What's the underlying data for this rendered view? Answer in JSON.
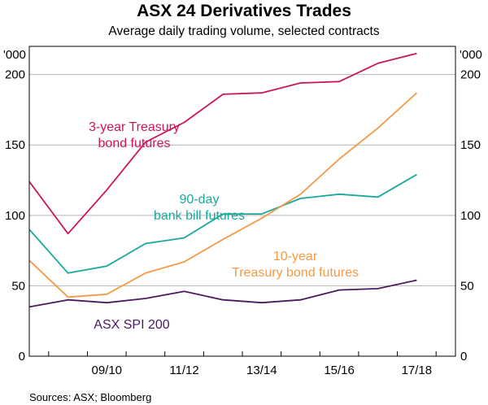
{
  "chart_data": {
    "type": "line",
    "title": "ASX 24 Derivatives Trades",
    "subtitle": "Average daily trading volume, selected contracts",
    "left_unit": "'000",
    "right_unit": "'000",
    "source": "Sources: ASX; Bloomberg",
    "ylim": [
      0,
      220
    ],
    "xlim": [
      2007.5,
      2018.5
    ],
    "y_ticks": [
      0,
      50,
      100,
      150,
      200
    ],
    "x_ticks": [
      {
        "label": "09/10",
        "x": 2009.5
      },
      {
        "label": "11/12",
        "x": 2011.5
      },
      {
        "label": "13/14",
        "x": 2013.5
      },
      {
        "label": "15/16",
        "x": 2015.5
      },
      {
        "label": "17/18",
        "x": 2017.5
      }
    ],
    "series": [
      {
        "name": "3-year Treasury bond futures",
        "color": "#c8175c",
        "label_lines": [
          "3-year Treasury",
          "bond futures"
        ],
        "points": [
          [
            2007.5,
            124
          ],
          [
            2008.5,
            87
          ],
          [
            2009.5,
            118
          ],
          [
            2010.5,
            152
          ],
          [
            2011.5,
            166
          ],
          [
            2012.5,
            186
          ],
          [
            2013.5,
            187
          ],
          [
            2014.5,
            194
          ],
          [
            2015.5,
            195
          ],
          [
            2016.5,
            208
          ],
          [
            2017.5,
            215
          ]
        ]
      },
      {
        "name": "90-day bank bill futures",
        "color": "#1aa89c",
        "label_lines": [
          "90-day",
          "bank bill futures"
        ],
        "points": [
          [
            2007.5,
            90
          ],
          [
            2008.5,
            59
          ],
          [
            2009.5,
            64
          ],
          [
            2010.5,
            80
          ],
          [
            2011.5,
            84
          ],
          [
            2012.5,
            101
          ],
          [
            2013.5,
            101
          ],
          [
            2014.5,
            112
          ],
          [
            2015.5,
            115
          ],
          [
            2016.5,
            113
          ],
          [
            2017.5,
            129
          ]
        ]
      },
      {
        "name": "10-year Treasury bond futures",
        "color": "#f59a46",
        "label_lines": [
          "10-year",
          "Treasury bond futures"
        ],
        "points": [
          [
            2007.5,
            68
          ],
          [
            2008.5,
            42
          ],
          [
            2009.5,
            44
          ],
          [
            2010.5,
            59
          ],
          [
            2011.5,
            67
          ],
          [
            2012.5,
            83
          ],
          [
            2013.5,
            98
          ],
          [
            2014.5,
            115
          ],
          [
            2015.5,
            140
          ],
          [
            2016.5,
            162
          ],
          [
            2017.5,
            187
          ]
        ]
      },
      {
        "name": "ASX SPI 200",
        "color": "#4a1a5e",
        "label_lines": [
          "ASX SPI 200"
        ],
        "points": [
          [
            2007.5,
            35
          ],
          [
            2008.5,
            40
          ],
          [
            2009.5,
            38
          ],
          [
            2010.5,
            41
          ],
          [
            2011.5,
            46
          ],
          [
            2012.5,
            40
          ],
          [
            2013.5,
            38
          ],
          [
            2014.5,
            40
          ],
          [
            2015.5,
            47
          ],
          [
            2016.5,
            48
          ],
          [
            2017.5,
            54
          ]
        ]
      }
    ]
  }
}
